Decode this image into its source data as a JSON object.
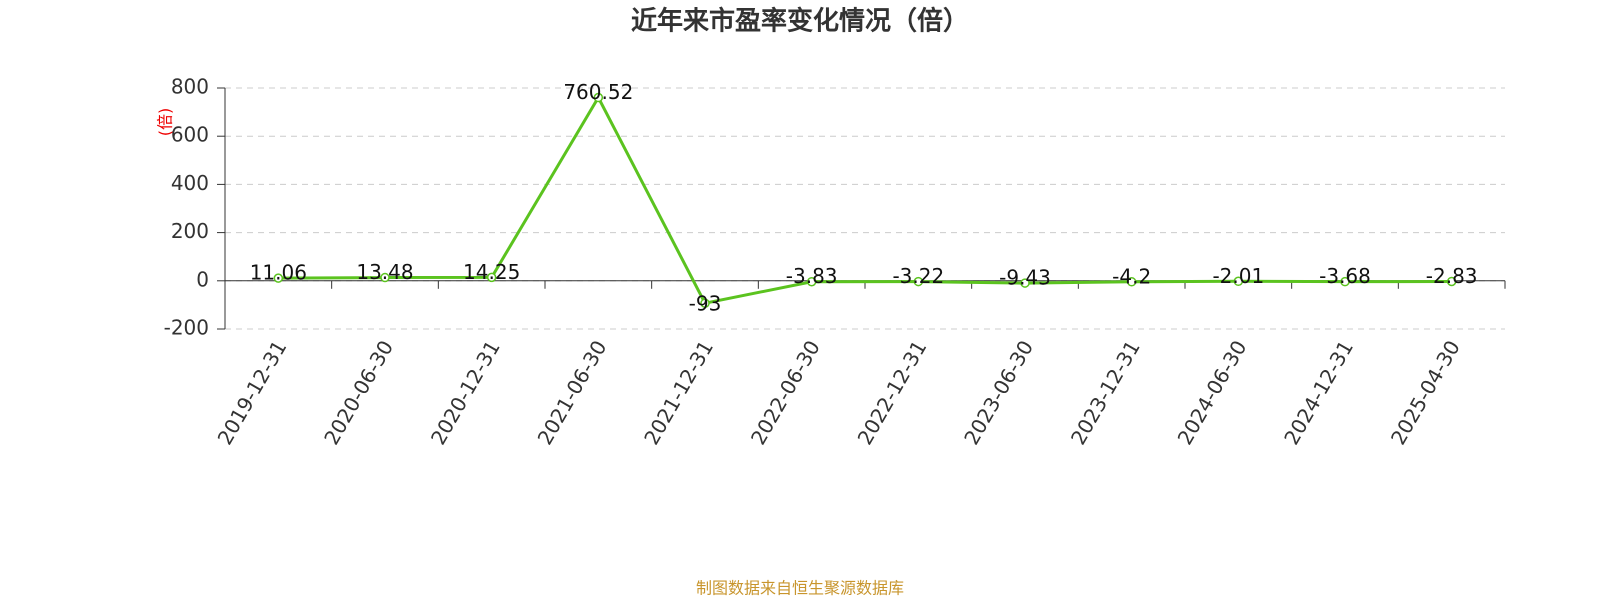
{
  "chart_data": {
    "type": "line",
    "title": "近年来市盈率变化情况（倍）",
    "y_label": "(倍)",
    "source": "制图数据来自恒生聚源数据库",
    "categories": [
      "2019-12-31",
      "2020-06-30",
      "2020-12-31",
      "2021-06-30",
      "2021-12-31",
      "2022-06-30",
      "2022-12-31",
      "2023-06-30",
      "2023-12-31",
      "2024-06-30",
      "2024-12-31",
      "2025-04-30"
    ],
    "series": [
      {
        "color": "#5bc31f",
        "values": [
          11.06,
          13.48,
          14.25,
          760.52,
          -93,
          -3.83,
          -3.22,
          -9.43,
          -4.2,
          -2.01,
          -3.68,
          -2.83
        ]
      }
    ],
    "ylim": [
      -200,
      800
    ],
    "yticks": [
      -200,
      0,
      200,
      400,
      600,
      800
    ],
    "grid": true
  }
}
